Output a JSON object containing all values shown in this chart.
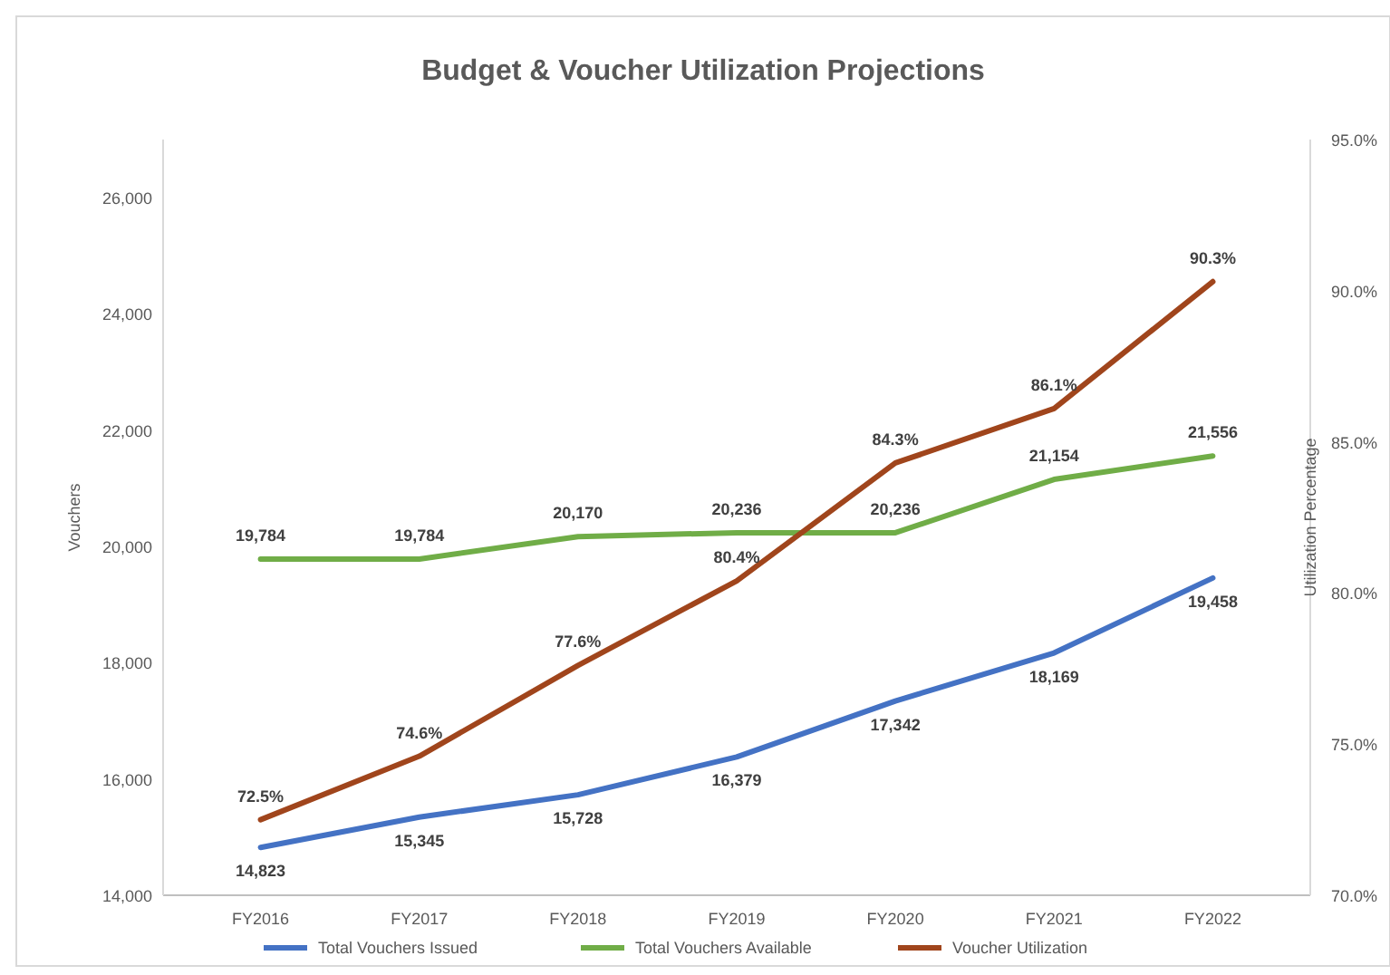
{
  "chart_data": {
    "type": "line",
    "title": "Budget & Voucher Utilization Projections",
    "ylabel": "Vouchers",
    "y2label": "Utilization Percentage",
    "categories": [
      "FY2016",
      "FY2017",
      "FY2018",
      "FY2019",
      "FY2020",
      "FY2021",
      "FY2022"
    ],
    "series": [
      {
        "name": "Total Vouchers Issued",
        "color": "#4472c4",
        "values": [
          14823,
          15345,
          15728,
          16379,
          17342,
          18169,
          19458
        ],
        "value_labels": [
          "14,823",
          "15,345",
          "15,728",
          "16,379",
          "17,342",
          "18,169",
          "19,458"
        ]
      },
      {
        "name": "Total Vouchers Available",
        "color": "#70ad47",
        "values": [
          19784,
          19784,
          20170,
          20236,
          20236,
          21154,
          21556
        ],
        "value_labels": [
          "19,784",
          "19,784",
          "20,170",
          "20,236",
          "20,236",
          "21,154",
          "21,556"
        ]
      },
      {
        "name": "Voucher Utilization",
        "color": "#a0451c",
        "axis": "y2",
        "values": [
          72.5,
          74.6,
          77.6,
          80.4,
          84.3,
          86.1,
          90.3
        ],
        "value_labels": [
          "72.5%",
          "74.6%",
          "77.6%",
          "80.4%",
          "84.3%",
          "86.1%",
          "90.3%"
        ]
      }
    ],
    "ylim": [
      14000,
      27000
    ],
    "yticks": [
      {
        "value": 14000,
        "label": "14,000"
      },
      {
        "value": 16000,
        "label": "16,000"
      },
      {
        "value": 18000,
        "label": "18,000"
      },
      {
        "value": 20000,
        "label": "20,000"
      },
      {
        "value": 22000,
        "label": "22,000"
      },
      {
        "value": 24000,
        "label": "24,000"
      },
      {
        "value": 26000,
        "label": "26,000"
      }
    ],
    "y2lim": [
      70,
      95
    ],
    "y2ticks": [
      {
        "value": 70,
        "label": "70.0%"
      },
      {
        "value": 75,
        "label": "75.0%"
      },
      {
        "value": 80,
        "label": "80.0%"
      },
      {
        "value": 85,
        "label": "85.0%"
      },
      {
        "value": 90,
        "label": "90.0%"
      },
      {
        "value": 95,
        "label": "95.0%"
      }
    ],
    "legend": "bottom",
    "line_style": "solid",
    "marker": "none"
  }
}
